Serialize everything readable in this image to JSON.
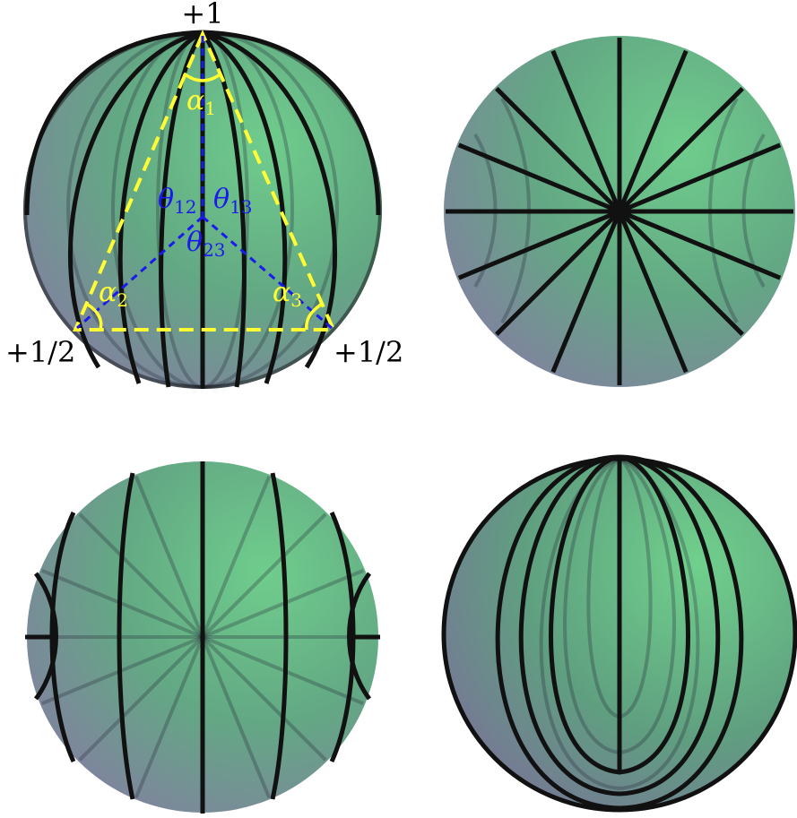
{
  "colors": {
    "sphere_light": "#6ec98a",
    "sphere_mid": "#5f9e7f",
    "sphere_dark_purple": "#8a7fa6",
    "line": "#111111",
    "triangle": "#ffff33",
    "dihedral": "#1a1aee"
  },
  "labels": {
    "top": "+1",
    "bottom_left": "+1/2",
    "bottom_right": "+1/2",
    "alpha1": {
      "sym": "α",
      "sub": "1"
    },
    "alpha2": {
      "sym": "α",
      "sub": "2"
    },
    "alpha3": {
      "sym": "α",
      "sub": "3"
    },
    "theta12": {
      "sym": "θ",
      "sub": "12"
    },
    "theta13": {
      "sym": "θ",
      "sub": "13"
    },
    "theta23": {
      "sym": "θ",
      "sub": "23"
    }
  },
  "panels": [
    {
      "id": "top-left",
      "view": "side view with triangle, meridians"
    },
    {
      "id": "top-right",
      "view": "pole view, radial lines"
    },
    {
      "id": "bottom-left",
      "view": "equatorial hyperbolic lines"
    },
    {
      "id": "bottom-right",
      "view": "elliptic meridians"
    }
  ]
}
